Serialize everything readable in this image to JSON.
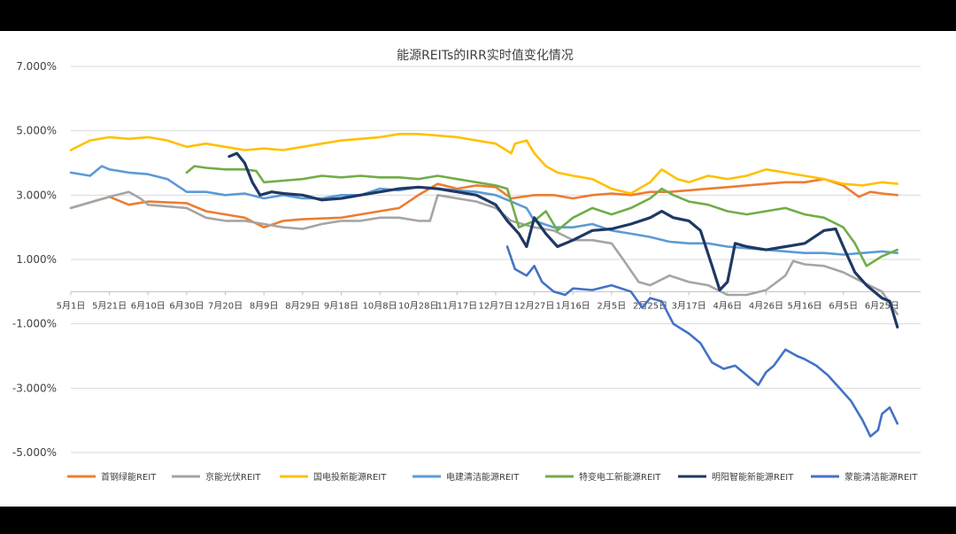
{
  "chart_data": {
    "type": "line",
    "title": "能源REITs的IRR实时值变化情况",
    "y_ticks": [
      "7.000%",
      "5.000%",
      "3.000%",
      "1.000%",
      "-1.000%",
      "-3.000%",
      "-5.000%"
    ],
    "y_tick_values": [
      7,
      5,
      3,
      1,
      -1,
      -3,
      -5
    ],
    "ylim": [
      -5,
      7
    ],
    "x_ticks": [
      "5月1日",
      "5月21日",
      "6月10日",
      "6月30日",
      "7月20日",
      "8月9日",
      "8月29日",
      "9月18日",
      "10月8日",
      "10月28日",
      "11月17日",
      "12月7日",
      "12月27日",
      "1月16日",
      "2月5日",
      "2月25日",
      "3月17日",
      "4月6日",
      "4月26日",
      "5月16日",
      "6月5日",
      "6月25日"
    ],
    "grid": true,
    "legend_position": "bottom",
    "series": [
      {
        "name": "首钢绿能REIT",
        "color": "#ed7d31",
        "points": [
          [
            0,
            2.6
          ],
          [
            1,
            2.95
          ],
          [
            1.5,
            2.7
          ],
          [
            2,
            2.8
          ],
          [
            3,
            2.75
          ],
          [
            3.5,
            2.5
          ],
          [
            4,
            2.4
          ],
          [
            4.5,
            2.3
          ],
          [
            5,
            2.0
          ],
          [
            5.5,
            2.2
          ],
          [
            6,
            2.25
          ],
          [
            7,
            2.3
          ],
          [
            7.5,
            2.4
          ],
          [
            8,
            2.5
          ],
          [
            8.5,
            2.6
          ],
          [
            9,
            3.0
          ],
          [
            9.5,
            3.35
          ],
          [
            10,
            3.2
          ],
          [
            10.5,
            3.3
          ],
          [
            11,
            3.25
          ],
          [
            11.4,
            2.9
          ],
          [
            12,
            3.0
          ],
          [
            12.5,
            3.0
          ],
          [
            13,
            2.9
          ],
          [
            13.5,
            3.0
          ],
          [
            14,
            3.05
          ],
          [
            14.5,
            3.0
          ],
          [
            15,
            3.1
          ],
          [
            15.5,
            3.1
          ],
          [
            16,
            3.15
          ],
          [
            16.5,
            3.2
          ],
          [
            17,
            3.25
          ],
          [
            17.5,
            3.3
          ],
          [
            18,
            3.35
          ],
          [
            18.5,
            3.4
          ],
          [
            19,
            3.4
          ],
          [
            19.5,
            3.5
          ],
          [
            20,
            3.3
          ],
          [
            20.4,
            2.95
          ],
          [
            20.7,
            3.1
          ],
          [
            21,
            3.05
          ],
          [
            21.4,
            3.0
          ]
        ]
      },
      {
        "name": "京能光伏REIT",
        "color": "#a5a5a5",
        "points": [
          [
            0,
            2.6
          ],
          [
            1,
            2.95
          ],
          [
            1.5,
            3.1
          ],
          [
            1.8,
            2.9
          ],
          [
            2,
            2.7
          ],
          [
            3,
            2.6
          ],
          [
            3.5,
            2.3
          ],
          [
            4,
            2.2
          ],
          [
            4.5,
            2.2
          ],
          [
            5,
            2.1
          ],
          [
            5.5,
            2.0
          ],
          [
            6,
            1.95
          ],
          [
            6.5,
            2.1
          ],
          [
            7,
            2.2
          ],
          [
            7.5,
            2.2
          ],
          [
            8,
            2.3
          ],
          [
            8.5,
            2.3
          ],
          [
            9,
            2.2
          ],
          [
            9.3,
            2.2
          ],
          [
            9.5,
            3.0
          ],
          [
            10,
            2.9
          ],
          [
            10.5,
            2.8
          ],
          [
            11,
            2.6
          ],
          [
            11.4,
            2.2
          ],
          [
            12,
            2.0
          ],
          [
            12.5,
            1.9
          ],
          [
            13,
            1.6
          ],
          [
            13.5,
            1.6
          ],
          [
            14,
            1.5
          ],
          [
            14.3,
            1.0
          ],
          [
            14.7,
            0.3
          ],
          [
            15,
            0.2
          ],
          [
            15.5,
            0.5
          ],
          [
            16,
            0.3
          ],
          [
            16.5,
            0.2
          ],
          [
            17,
            -0.1
          ],
          [
            17.5,
            -0.1
          ],
          [
            18,
            0.05
          ],
          [
            18.5,
            0.5
          ],
          [
            18.7,
            0.95
          ],
          [
            19,
            0.85
          ],
          [
            19.5,
            0.8
          ],
          [
            20,
            0.6
          ],
          [
            20.5,
            0.3
          ],
          [
            21,
            0.0
          ],
          [
            21.4,
            -0.7
          ]
        ]
      },
      {
        "name": "国电投新能源REIT",
        "color": "#ffc000",
        "points": [
          [
            0,
            4.4
          ],
          [
            0.5,
            4.7
          ],
          [
            1,
            4.8
          ],
          [
            1.5,
            4.75
          ],
          [
            2,
            4.8
          ],
          [
            2.5,
            4.7
          ],
          [
            3,
            4.5
          ],
          [
            3.5,
            4.6
          ],
          [
            4,
            4.5
          ],
          [
            4.5,
            4.4
          ],
          [
            5,
            4.45
          ],
          [
            5.5,
            4.4
          ],
          [
            6,
            4.5
          ],
          [
            6.5,
            4.6
          ],
          [
            7,
            4.7
          ],
          [
            7.5,
            4.75
          ],
          [
            8,
            4.8
          ],
          [
            8.5,
            4.9
          ],
          [
            9,
            4.9
          ],
          [
            9.5,
            4.85
          ],
          [
            10,
            4.8
          ],
          [
            10.5,
            4.7
          ],
          [
            11,
            4.6
          ],
          [
            11.4,
            4.3
          ],
          [
            11.5,
            4.6
          ],
          [
            11.8,
            4.7
          ],
          [
            12,
            4.3
          ],
          [
            12.3,
            3.9
          ],
          [
            12.6,
            3.7
          ],
          [
            13,
            3.6
          ],
          [
            13.5,
            3.5
          ],
          [
            14,
            3.2
          ],
          [
            14.5,
            3.05
          ],
          [
            15,
            3.4
          ],
          [
            15.3,
            3.8
          ],
          [
            15.7,
            3.5
          ],
          [
            16,
            3.4
          ],
          [
            16.5,
            3.6
          ],
          [
            17,
            3.5
          ],
          [
            17.5,
            3.6
          ],
          [
            18,
            3.8
          ],
          [
            18.5,
            3.7
          ],
          [
            19,
            3.6
          ],
          [
            19.5,
            3.5
          ],
          [
            20,
            3.35
          ],
          [
            20.5,
            3.3
          ],
          [
            21,
            3.4
          ],
          [
            21.4,
            3.35
          ]
        ]
      },
      {
        "name": "电建清洁能源REIT",
        "color": "#5b9bd5",
        "points": [
          [
            0,
            3.7
          ],
          [
            0.5,
            3.6
          ],
          [
            0.8,
            3.9
          ],
          [
            1,
            3.8
          ],
          [
            1.5,
            3.7
          ],
          [
            2,
            3.65
          ],
          [
            2.5,
            3.5
          ],
          [
            3,
            3.1
          ],
          [
            3.5,
            3.1
          ],
          [
            4,
            3.0
          ],
          [
            4.5,
            3.05
          ],
          [
            5,
            2.9
          ],
          [
            5.5,
            3.0
          ],
          [
            6,
            2.9
          ],
          [
            6.5,
            2.9
          ],
          [
            7,
            3.0
          ],
          [
            7.5,
            3.0
          ],
          [
            8,
            3.2
          ],
          [
            8.5,
            3.15
          ],
          [
            9,
            3.25
          ],
          [
            9.5,
            3.2
          ],
          [
            10,
            3.15
          ],
          [
            10.5,
            3.1
          ],
          [
            11,
            3.0
          ],
          [
            11.4,
            2.8
          ],
          [
            11.8,
            2.6
          ],
          [
            12,
            2.2
          ],
          [
            12.5,
            2.0
          ],
          [
            13,
            2.0
          ],
          [
            13.5,
            2.1
          ],
          [
            14,
            1.9
          ],
          [
            14.5,
            1.8
          ],
          [
            15,
            1.7
          ],
          [
            15.5,
            1.55
          ],
          [
            16,
            1.5
          ],
          [
            16.5,
            1.5
          ],
          [
            17,
            1.4
          ],
          [
            17.5,
            1.35
          ],
          [
            18,
            1.3
          ],
          [
            18.5,
            1.25
          ],
          [
            19,
            1.2
          ],
          [
            19.5,
            1.2
          ],
          [
            20,
            1.15
          ],
          [
            20.5,
            1.2
          ],
          [
            21,
            1.25
          ],
          [
            21.4,
            1.2
          ]
        ]
      },
      {
        "name": "特变电工新能源REIT",
        "color": "#70ad47",
        "points": [
          [
            3,
            3.7
          ],
          [
            3.2,
            3.9
          ],
          [
            3.5,
            3.85
          ],
          [
            4,
            3.8
          ],
          [
            4.5,
            3.8
          ],
          [
            4.8,
            3.75
          ],
          [
            5,
            3.4
          ],
          [
            5.5,
            3.45
          ],
          [
            6,
            3.5
          ],
          [
            6.5,
            3.6
          ],
          [
            7,
            3.55
          ],
          [
            7.5,
            3.6
          ],
          [
            8,
            3.55
          ],
          [
            8.5,
            3.55
          ],
          [
            9,
            3.5
          ],
          [
            9.5,
            3.6
          ],
          [
            10,
            3.5
          ],
          [
            10.5,
            3.4
          ],
          [
            11,
            3.3
          ],
          [
            11.3,
            3.2
          ],
          [
            11.6,
            2.0
          ],
          [
            12,
            2.2
          ],
          [
            12.3,
            2.5
          ],
          [
            12.6,
            1.9
          ],
          [
            13,
            2.3
          ],
          [
            13.5,
            2.6
          ],
          [
            14,
            2.4
          ],
          [
            14.5,
            2.6
          ],
          [
            15,
            2.9
          ],
          [
            15.3,
            3.2
          ],
          [
            15.6,
            3.0
          ],
          [
            16,
            2.8
          ],
          [
            16.5,
            2.7
          ],
          [
            17,
            2.5
          ],
          [
            17.5,
            2.4
          ],
          [
            18,
            2.5
          ],
          [
            18.5,
            2.6
          ],
          [
            19,
            2.4
          ],
          [
            19.5,
            2.3
          ],
          [
            20,
            2.0
          ],
          [
            20.3,
            1.5
          ],
          [
            20.6,
            0.8
          ],
          [
            21,
            1.1
          ],
          [
            21.4,
            1.3
          ]
        ]
      },
      {
        "name": "明阳智能新能源REIT",
        "color": "#1f3864",
        "points": [
          [
            4.1,
            4.2
          ],
          [
            4.3,
            4.3
          ],
          [
            4.5,
            4.0
          ],
          [
            4.7,
            3.4
          ],
          [
            4.9,
            3.0
          ],
          [
            5.2,
            3.1
          ],
          [
            5.5,
            3.05
          ],
          [
            6,
            3.0
          ],
          [
            6.5,
            2.85
          ],
          [
            7,
            2.9
          ],
          [
            7.5,
            3.0
          ],
          [
            8,
            3.1
          ],
          [
            8.5,
            3.2
          ],
          [
            9,
            3.25
          ],
          [
            9.5,
            3.2
          ],
          [
            10,
            3.1
          ],
          [
            10.5,
            3.0
          ],
          [
            11,
            2.7
          ],
          [
            11.3,
            2.2
          ],
          [
            11.6,
            1.8
          ],
          [
            11.8,
            1.4
          ],
          [
            12,
            2.3
          ],
          [
            12.3,
            1.8
          ],
          [
            12.6,
            1.4
          ],
          [
            13,
            1.6
          ],
          [
            13.5,
            1.9
          ],
          [
            14,
            1.95
          ],
          [
            14.5,
            2.1
          ],
          [
            15,
            2.3
          ],
          [
            15.3,
            2.5
          ],
          [
            15.6,
            2.3
          ],
          [
            16,
            2.2
          ],
          [
            16.3,
            1.9
          ],
          [
            16.6,
            0.8
          ],
          [
            16.8,
            0.05
          ],
          [
            17,
            0.3
          ],
          [
            17.2,
            1.5
          ],
          [
            17.5,
            1.4
          ],
          [
            18,
            1.3
          ],
          [
            18.5,
            1.4
          ],
          [
            19,
            1.5
          ],
          [
            19.5,
            1.9
          ],
          [
            19.8,
            1.95
          ],
          [
            20,
            1.4
          ],
          [
            20.3,
            0.6
          ],
          [
            20.6,
            0.2
          ],
          [
            21,
            -0.2
          ],
          [
            21.2,
            -0.3
          ],
          [
            21.4,
            -1.1
          ]
        ]
      },
      {
        "name": "蒙能清洁能源REIT",
        "color": "#4472c4",
        "points": [
          [
            11.3,
            1.4
          ],
          [
            11.5,
            0.7
          ],
          [
            11.8,
            0.5
          ],
          [
            12,
            0.8
          ],
          [
            12.2,
            0.3
          ],
          [
            12.5,
            0.0
          ],
          [
            12.8,
            -0.1
          ],
          [
            13,
            0.1
          ],
          [
            13.5,
            0.05
          ],
          [
            14,
            0.2
          ],
          [
            14.5,
            0.0
          ],
          [
            14.8,
            -0.5
          ],
          [
            15,
            -0.2
          ],
          [
            15.3,
            -0.3
          ],
          [
            15.6,
            -1.0
          ],
          [
            16,
            -1.3
          ],
          [
            16.3,
            -1.6
          ],
          [
            16.6,
            -2.2
          ],
          [
            16.9,
            -2.4
          ],
          [
            17.2,
            -2.3
          ],
          [
            17.5,
            -2.6
          ],
          [
            17.8,
            -2.9
          ],
          [
            18,
            -2.5
          ],
          [
            18.2,
            -2.3
          ],
          [
            18.5,
            -1.8
          ],
          [
            18.8,
            -2.0
          ],
          [
            19,
            -2.1
          ],
          [
            19.3,
            -2.3
          ],
          [
            19.6,
            -2.6
          ],
          [
            19.9,
            -3.0
          ],
          [
            20.2,
            -3.4
          ],
          [
            20.5,
            -4.0
          ],
          [
            20.7,
            -4.5
          ],
          [
            20.9,
            -4.3
          ],
          [
            21,
            -3.8
          ],
          [
            21.2,
            -3.6
          ],
          [
            21.4,
            -4.1
          ]
        ]
      }
    ]
  }
}
